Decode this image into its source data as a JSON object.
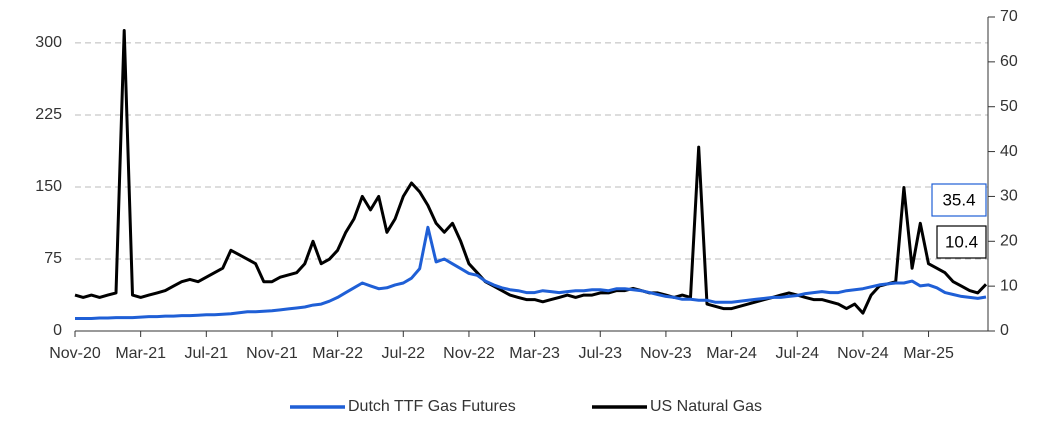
{
  "chart_data": {
    "type": "line",
    "categories": [
      "Nov-20",
      null,
      null,
      null,
      null,
      null,
      null,
      null,
      "Mar-21",
      null,
      null,
      null,
      null,
      null,
      null,
      null,
      "Jul-21",
      null,
      null,
      null,
      null,
      null,
      null,
      null,
      "Nov-21",
      null,
      null,
      null,
      null,
      null,
      null,
      null,
      "Mar-22",
      null,
      null,
      null,
      null,
      null,
      null,
      null,
      "Jul-22",
      null,
      null,
      null,
      null,
      null,
      null,
      null,
      "Nov-22",
      null,
      null,
      null,
      null,
      null,
      null,
      null,
      "Mar-23",
      null,
      null,
      null,
      null,
      null,
      null,
      null,
      "Jul-23",
      null,
      null,
      null,
      null,
      null,
      null,
      null,
      "Nov-23",
      null,
      null,
      null,
      null,
      null,
      null,
      null,
      "Mar-24",
      null,
      null,
      null,
      null,
      null,
      null,
      null,
      "Jul-24",
      null,
      null,
      null,
      null,
      null,
      null,
      null,
      "Nov-24",
      null,
      null,
      null,
      null,
      null,
      null,
      null,
      "Mar-25",
      null,
      null,
      null,
      null,
      null,
      null,
      null
    ],
    "series": [
      {
        "name": "Dutch TTF Gas Futures",
        "color": "#1f5fd6",
        "axis": "y",
        "values": [
          13,
          13,
          13,
          13.5,
          13.5,
          14,
          14,
          14,
          14.5,
          15,
          15,
          15.5,
          15.5,
          16,
          16,
          16.5,
          17,
          17,
          17.5,
          18,
          19,
          20,
          20,
          20.5,
          21,
          22,
          23,
          24,
          25,
          27,
          28,
          31,
          35,
          40,
          45,
          50,
          47,
          44,
          45,
          48,
          50,
          55,
          65,
          108,
          72,
          75,
          70,
          65,
          60,
          58,
          52,
          48,
          45,
          43,
          42,
          40,
          40,
          42,
          41,
          40,
          41,
          42,
          42,
          43,
          43,
          42,
          44,
          44,
          43,
          42,
          40,
          38,
          36,
          35,
          33,
          33,
          32,
          32,
          30,
          30,
          30,
          31,
          32,
          33,
          34,
          35,
          35,
          36,
          37,
          39,
          40,
          41,
          40,
          40,
          42,
          43,
          44,
          46,
          48,
          49,
          50,
          50,
          52,
          47,
          48,
          45,
          40,
          38,
          36,
          35,
          34,
          35.4
        ]
      },
      {
        "name": "US Natural Gas",
        "color": "#000000",
        "axis": "y2",
        "values": [
          8,
          7.5,
          8,
          7.5,
          8,
          8.5,
          67,
          8,
          7.5,
          8,
          8.5,
          9,
          10,
          11,
          11.5,
          11,
          12,
          13,
          14,
          18,
          17,
          16,
          15,
          11,
          11,
          12,
          12.5,
          13,
          15,
          20,
          15,
          16,
          18,
          22,
          25,
          30,
          27,
          30,
          22,
          25,
          30,
          33,
          31,
          28,
          24,
          22,
          24,
          20,
          15,
          13,
          11,
          10,
          9,
          8,
          7.5,
          7,
          7,
          6.5,
          7,
          7.5,
          8,
          7.5,
          8,
          8,
          8.5,
          8.5,
          9,
          9,
          9.5,
          9,
          8.5,
          8.5,
          8,
          7.5,
          8,
          7.5,
          41,
          6,
          5.5,
          5,
          5,
          5.5,
          6,
          6.5,
          7,
          7.5,
          8,
          8.5,
          8,
          7.5,
          7,
          7,
          6.5,
          6,
          5,
          6,
          4,
          8,
          10,
          10.5,
          11,
          32,
          14,
          24,
          15,
          14,
          13,
          11,
          10,
          9,
          8.5,
          10.4
        ]
      }
    ],
    "ylim": [
      0,
      327
    ],
    "yticks": [
      0,
      75,
      150,
      225,
      300
    ],
    "y2lim": [
      0,
      70
    ],
    "y2ticks": [
      0,
      10,
      20,
      30,
      40,
      50,
      60,
      70
    ],
    "grid": true,
    "legend": "bottom"
  }
}
